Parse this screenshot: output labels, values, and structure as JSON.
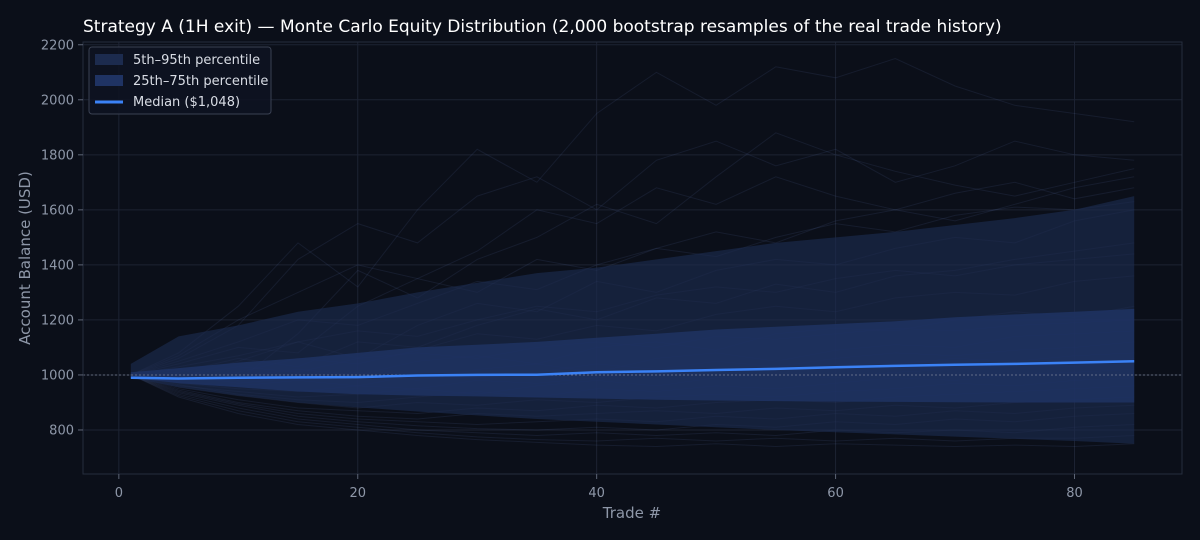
{
  "chart_data": {
    "type": "line",
    "title": "Strategy A (1H exit) — Monte Carlo Equity Distribution (2,000 bootstrap resamples of the real trade history)",
    "xlabel": "Trade #",
    "ylabel": "Account Balance (USD)",
    "xlim": [
      -3,
      89
    ],
    "ylim": [
      640,
      2210
    ],
    "x_ticks": [
      0,
      20,
      40,
      60,
      80
    ],
    "y_ticks": [
      800,
      1000,
      1200,
      1400,
      1600,
      1800,
      2000,
      2200
    ],
    "reference_line": 1000,
    "grid": true,
    "legend_position": "top-left",
    "x": [
      1,
      5,
      10,
      15,
      20,
      25,
      30,
      35,
      40,
      45,
      50,
      55,
      60,
      65,
      70,
      75,
      80,
      85
    ],
    "bands": [
      {
        "name": "5th–95th percentile",
        "color": "#1c2b4e",
        "lower": [
          990,
          955,
          925,
          900,
          882,
          867,
          853,
          840,
          830,
          820,
          810,
          800,
          792,
          784,
          776,
          768,
          760,
          750
        ],
        "upper": [
          1040,
          1140,
          1180,
          1230,
          1260,
          1300,
          1335,
          1370,
          1390,
          1420,
          1450,
          1480,
          1500,
          1520,
          1545,
          1570,
          1600,
          1650
        ]
      },
      {
        "name": "25th–75th percentile",
        "color": "#1f3363",
        "lower": [
          990,
          970,
          955,
          940,
          930,
          925,
          922,
          918,
          914,
          910,
          907,
          905,
          903,
          902,
          901,
          900,
          900,
          900
        ],
        "upper": [
          1010,
          1025,
          1045,
          1060,
          1080,
          1100,
          1110,
          1120,
          1135,
          1150,
          1165,
          1175,
          1185,
          1195,
          1210,
          1220,
          1230,
          1240
        ]
      }
    ],
    "series": [
      {
        "name": "Median ($1,048)",
        "color": "#3b82f6",
        "values": [
          990,
          987,
          990,
          991,
          992,
          998,
          1000,
          1001,
          1010,
          1013,
          1018,
          1022,
          1028,
          1033,
          1037,
          1040,
          1045,
          1050
        ]
      }
    ],
    "sample_paths": [
      [
        1000,
        1080,
        1250,
        1480,
        1320,
        1600,
        1820,
        1700,
        1950,
        2100,
        1980,
        2120,
        2080,
        2150,
        2050,
        1980,
        1950,
        1920
      ],
      [
        1000,
        1060,
        1180,
        1420,
        1550,
        1480,
        1650,
        1720,
        1600,
        1780,
        1850,
        1760,
        1820,
        1700,
        1760,
        1850,
        1800,
        1780
      ],
      [
        1000,
        1020,
        980,
        1150,
        1380,
        1280,
        1420,
        1500,
        1620,
        1550,
        1720,
        1880,
        1800,
        1740,
        1690,
        1650,
        1700,
        1750
      ],
      [
        1000,
        1040,
        1100,
        1080,
        1250,
        1350,
        1300,
        1420,
        1380,
        1460,
        1520,
        1480,
        1560,
        1600,
        1560,
        1620,
        1680,
        1720
      ],
      [
        1000,
        990,
        1050,
        1120,
        1060,
        1180,
        1260,
        1230,
        1340,
        1300,
        1380,
        1420,
        1400,
        1460,
        1500,
        1480,
        1560,
        1600
      ],
      [
        1000,
        1010,
        1060,
        1030,
        1120,
        1100,
        1180,
        1240,
        1200,
        1280,
        1260,
        1330,
        1300,
        1360,
        1380,
        1420,
        1450,
        1480
      ],
      [
        1000,
        985,
        1010,
        1060,
        1040,
        1090,
        1150,
        1130,
        1180,
        1160,
        1220,
        1250,
        1230,
        1280,
        1300,
        1290,
        1340,
        1360
      ],
      [
        1000,
        980,
        995,
        1020,
        1000,
        1050,
        1070,
        1040,
        1100,
        1120,
        1090,
        1150,
        1170,
        1160,
        1200,
        1230,
        1210,
        1250
      ],
      [
        1000,
        1000,
        970,
        990,
        1010,
        980,
        1020,
        1040,
        1010,
        1060,
        1080,
        1050,
        1090,
        1110,
        1100,
        1140,
        1150,
        1160
      ],
      [
        1000,
        975,
        960,
        980,
        960,
        1000,
        990,
        1010,
        1040,
        1020,
        1050,
        1030,
        1060,
        1080,
        1070,
        1090,
        1100,
        1120
      ],
      [
        1000,
        970,
        950,
        940,
        960,
        950,
        980,
        970,
        990,
        1010,
        1000,
        1030,
        1020,
        1040,
        1060,
        1050,
        1070,
        1080
      ],
      [
        1000,
        960,
        940,
        920,
        930,
        950,
        930,
        960,
        980,
        960,
        990,
        1000,
        990,
        1010,
        1020,
        1040,
        1030,
        1060
      ],
      [
        1000,
        965,
        930,
        910,
        900,
        920,
        940,
        920,
        950,
        940,
        960,
        950,
        970,
        990,
        980,
        1000,
        1010,
        1020
      ],
      [
        1000,
        955,
        925,
        900,
        880,
        900,
        890,
        910,
        900,
        920,
        930,
        920,
        940,
        950,
        970,
        960,
        980,
        990
      ],
      [
        1000,
        950,
        910,
        880,
        870,
        860,
        880,
        870,
        890,
        880,
        900,
        910,
        900,
        920,
        930,
        940,
        950,
        960
      ],
      [
        1000,
        945,
        900,
        870,
        850,
        840,
        860,
        850,
        860,
        870,
        860,
        880,
        870,
        890,
        880,
        900,
        910,
        920
      ],
      [
        1000,
        940,
        895,
        860,
        840,
        830,
        820,
        830,
        840,
        830,
        850,
        840,
        860,
        850,
        870,
        860,
        880,
        890
      ],
      [
        1000,
        935,
        890,
        850,
        830,
        815,
        805,
        800,
        810,
        800,
        820,
        810,
        830,
        820,
        840,
        830,
        850,
        860
      ],
      [
        1000,
        930,
        880,
        840,
        820,
        800,
        790,
        780,
        790,
        780,
        790,
        780,
        800,
        790,
        800,
        790,
        810,
        820
      ],
      [
        1000,
        925,
        870,
        830,
        810,
        790,
        775,
        765,
        760,
        770,
        760,
        770,
        760,
        770,
        760,
        770,
        770,
        780
      ],
      [
        1000,
        920,
        860,
        820,
        800,
        780,
        765,
        755,
        745,
        740,
        750,
        740,
        750,
        745,
        740,
        745,
        740,
        750
      ],
      [
        1000,
        1050,
        1120,
        1200,
        1180,
        1260,
        1340,
        1310,
        1400,
        1460,
        1430,
        1500,
        1550,
        1520,
        1580,
        1610,
        1600,
        1630
      ],
      [
        1000,
        1030,
        1070,
        1120,
        1160,
        1140,
        1200,
        1250,
        1230,
        1290,
        1320,
        1300,
        1350,
        1380,
        1360,
        1400,
        1420,
        1440
      ],
      [
        1000,
        1070,
        1200,
        1300,
        1400,
        1350,
        1450,
        1600,
        1550,
        1680,
        1620,
        1720,
        1650,
        1600,
        1660,
        1700,
        1640,
        1680
      ],
      [
        1000,
        995,
        1030,
        1010,
        1060,
        1080,
        1060,
        1100,
        1120,
        1100,
        1140,
        1130,
        1150,
        1170,
        1160,
        1180,
        1190,
        1200
      ]
    ]
  }
}
